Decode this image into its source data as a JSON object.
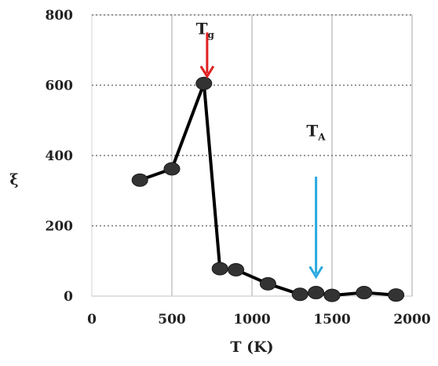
{
  "chart_data": {
    "type": "line",
    "title": "",
    "xlabel": "T (K)",
    "ylabel": "ξ",
    "xlim": [
      0,
      2000
    ],
    "ylim": [
      0,
      800
    ],
    "x_ticks": [
      0,
      500,
      1000,
      1500,
      2000
    ],
    "y_ticks": [
      0,
      200,
      400,
      600,
      800
    ],
    "grid": {
      "vertical": "solid",
      "horizontal": "dotted"
    },
    "legend": "none",
    "series": [
      {
        "x": [
          300,
          500,
          700,
          800,
          900,
          1100,
          1300,
          1400,
          1500,
          1700,
          1900
        ],
        "y": [
          330,
          362,
          605,
          78,
          75,
          35,
          5,
          10,
          2,
          10,
          3
        ],
        "color": "#000000",
        "marker_color": "#333333"
      }
    ],
    "annotations": [
      {
        "label_main": "T",
        "label_sub": "g",
        "arrow_x": 720,
        "arrow_y_from": 750,
        "arrow_y_to": 625,
        "label_x": 650,
        "label_y": 745,
        "color": "#e02020"
      },
      {
        "label_main": "T",
        "label_sub": "A",
        "arrow_x": 1400,
        "arrow_y_from": 340,
        "arrow_y_to": 55,
        "label_x": 1340,
        "label_y": 455,
        "color": "#2aa9e0"
      }
    ]
  }
}
